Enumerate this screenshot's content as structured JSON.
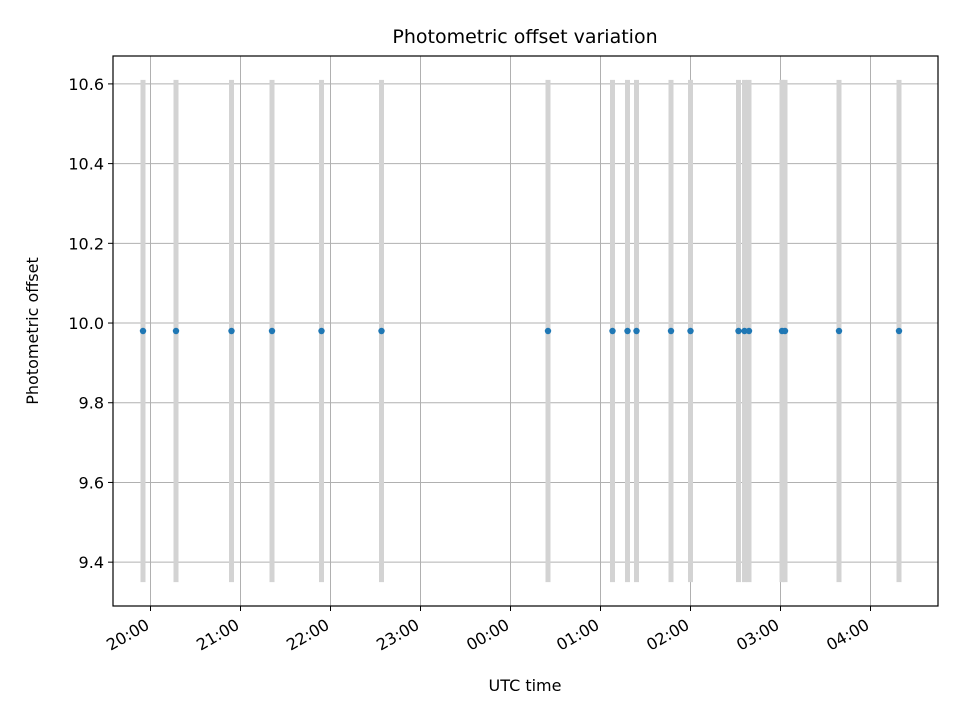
{
  "chart_data": {
    "type": "scatter",
    "title": "Photometric offset variation",
    "xlabel": "UTC time",
    "ylabel": "Photometric offset",
    "grid": true,
    "x_axis": {
      "kind": "time",
      "tick_labels": [
        "20:00",
        "21:00",
        "22:00",
        "23:00",
        "00:00",
        "01:00",
        "02:00",
        "03:00",
        "04:00"
      ],
      "first_tick": "20:00",
      "tick_interval_minutes": 60,
      "range": [
        "19:35",
        "04:45"
      ]
    },
    "y_axis": {
      "ticks": [
        9.4,
        9.6,
        9.8,
        10.0,
        10.2,
        10.4,
        10.6
      ],
      "tick_labels": [
        "9.4",
        "9.6",
        "9.8",
        "10.0",
        "10.2",
        "10.4",
        "10.6"
      ],
      "ylim": [
        9.29,
        10.67
      ]
    },
    "error_bar_color": "#d3d3d3",
    "marker_color": "#1f77b4",
    "series": [
      {
        "points": [
          {
            "x": "19:55",
            "y": 9.98,
            "ylow": 9.35,
            "yhigh": 10.61
          },
          {
            "x": "20:17",
            "y": 9.98,
            "ylow": 9.35,
            "yhigh": 10.61
          },
          {
            "x": "20:54",
            "y": 9.98,
            "ylow": 9.35,
            "yhigh": 10.61
          },
          {
            "x": "21:21",
            "y": 9.98,
            "ylow": 9.35,
            "yhigh": 10.61
          },
          {
            "x": "21:54",
            "y": 9.98,
            "ylow": 9.35,
            "yhigh": 10.61
          },
          {
            "x": "22:34",
            "y": 9.98,
            "ylow": 9.35,
            "yhigh": 10.61
          },
          {
            "x": "00:25",
            "y": 9.98,
            "ylow": 9.35,
            "yhigh": 10.61
          },
          {
            "x": "01:08",
            "y": 9.98,
            "ylow": 9.35,
            "yhigh": 10.61
          },
          {
            "x": "01:18",
            "y": 9.98,
            "ylow": 9.35,
            "yhigh": 10.61
          },
          {
            "x": "01:24",
            "y": 9.98,
            "ylow": 9.35,
            "yhigh": 10.61
          },
          {
            "x": "01:47",
            "y": 9.98,
            "ylow": 9.35,
            "yhigh": 10.61
          },
          {
            "x": "02:00",
            "y": 9.98,
            "ylow": 9.35,
            "yhigh": 10.61
          },
          {
            "x": "02:32",
            "y": 9.98,
            "ylow": 9.35,
            "yhigh": 10.61
          },
          {
            "x": "02:36",
            "y": 9.98,
            "ylow": 9.35,
            "yhigh": 10.61
          },
          {
            "x": "02:39",
            "y": 9.98,
            "ylow": 9.35,
            "yhigh": 10.61
          },
          {
            "x": "03:01",
            "y": 9.98,
            "ylow": 9.35,
            "yhigh": 10.61
          },
          {
            "x": "03:03",
            "y": 9.98,
            "ylow": 9.35,
            "yhigh": 10.61
          },
          {
            "x": "03:39",
            "y": 9.98,
            "ylow": 9.35,
            "yhigh": 10.61
          },
          {
            "x": "04:19",
            "y": 9.98,
            "ylow": 9.35,
            "yhigh": 10.61
          }
        ]
      }
    ]
  }
}
